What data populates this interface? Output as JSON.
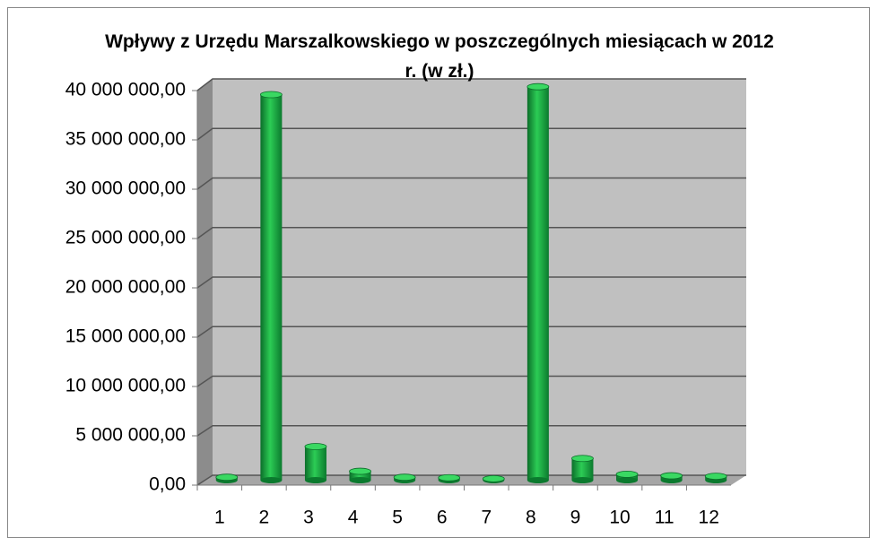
{
  "chart_data": {
    "type": "bar",
    "title": "Wpływy z Urzędu Marszalkowskiego w poszczególnych miesiącach w 2012 r. (w zł.)",
    "categories": [
      "1",
      "2",
      "3",
      "4",
      "5",
      "6",
      "7",
      "8",
      "9",
      "10",
      "11",
      "12"
    ],
    "values": [
      300000,
      39000000,
      3400000,
      900000,
      300000,
      250000,
      150000,
      39800000,
      2200000,
      600000,
      450000,
      400000
    ],
    "color": "#1aa83e",
    "ylim": [
      0,
      40000000
    ],
    "yticks": [
      {
        "value": 0,
        "label": "0,00"
      },
      {
        "value": 5000000,
        "label": "5 000 000,00"
      },
      {
        "value": 10000000,
        "label": "10 000 000,00"
      },
      {
        "value": 15000000,
        "label": "15 000 000,00"
      },
      {
        "value": 20000000,
        "label": "20 000 000,00"
      },
      {
        "value": 25000000,
        "label": "25 000 000,00"
      },
      {
        "value": 30000000,
        "label": "30 000 000,00"
      },
      {
        "value": 35000000,
        "label": "35 000 000,00"
      },
      {
        "value": 40000000,
        "label": "40 000 000,00"
      }
    ],
    "grid": true
  }
}
